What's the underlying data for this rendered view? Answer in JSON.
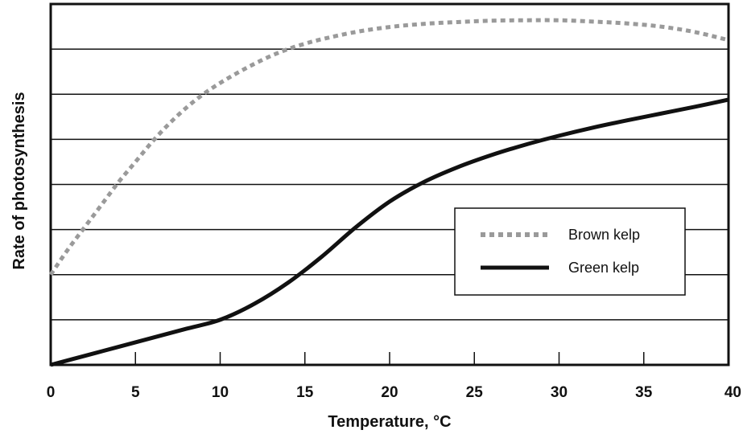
{
  "chart_data": {
    "type": "line",
    "title": "",
    "xlabel": "Temperature, °C",
    "ylabel": "Rate of photosynthesis",
    "xlim": [
      0,
      40
    ],
    "ylim": [
      0,
      8
    ],
    "x_ticks": [
      0,
      5,
      10,
      15,
      20,
      25,
      30,
      35,
      40
    ],
    "horizontal_gridlines": [
      1,
      2,
      3,
      4,
      5,
      6,
      7
    ],
    "grid": "horizontal",
    "legend_placement": "right-middle",
    "series": [
      {
        "name": "Brown kelp",
        "style": "dotted",
        "color": "#9a9a9a",
        "x": [
          0,
          1,
          2,
          3,
          4,
          5,
          6,
          7,
          8,
          9,
          10,
          11,
          12,
          13,
          14,
          15,
          16,
          18,
          20,
          22,
          24,
          26,
          28,
          30,
          32,
          34,
          36,
          38,
          40
        ],
        "y": [
          2.0,
          2.55,
          3.05,
          3.55,
          4.05,
          4.5,
          4.95,
          5.35,
          5.7,
          6.0,
          6.25,
          6.47,
          6.67,
          6.85,
          7.0,
          7.12,
          7.22,
          7.38,
          7.49,
          7.56,
          7.6,
          7.63,
          7.64,
          7.64,
          7.61,
          7.57,
          7.5,
          7.38,
          7.2
        ]
      },
      {
        "name": "Green kelp",
        "style": "solid",
        "color": "#111111",
        "x": [
          0,
          2,
          4,
          6,
          8,
          10,
          12,
          14,
          16,
          18,
          20,
          22,
          24,
          26,
          28,
          30,
          32,
          34,
          36,
          38,
          40
        ],
        "y": [
          0.0,
          0.2,
          0.4,
          0.6,
          0.8,
          1.0,
          1.35,
          1.82,
          2.4,
          3.05,
          3.62,
          4.05,
          4.38,
          4.65,
          4.88,
          5.08,
          5.26,
          5.42,
          5.57,
          5.72,
          5.88
        ]
      }
    ]
  }
}
